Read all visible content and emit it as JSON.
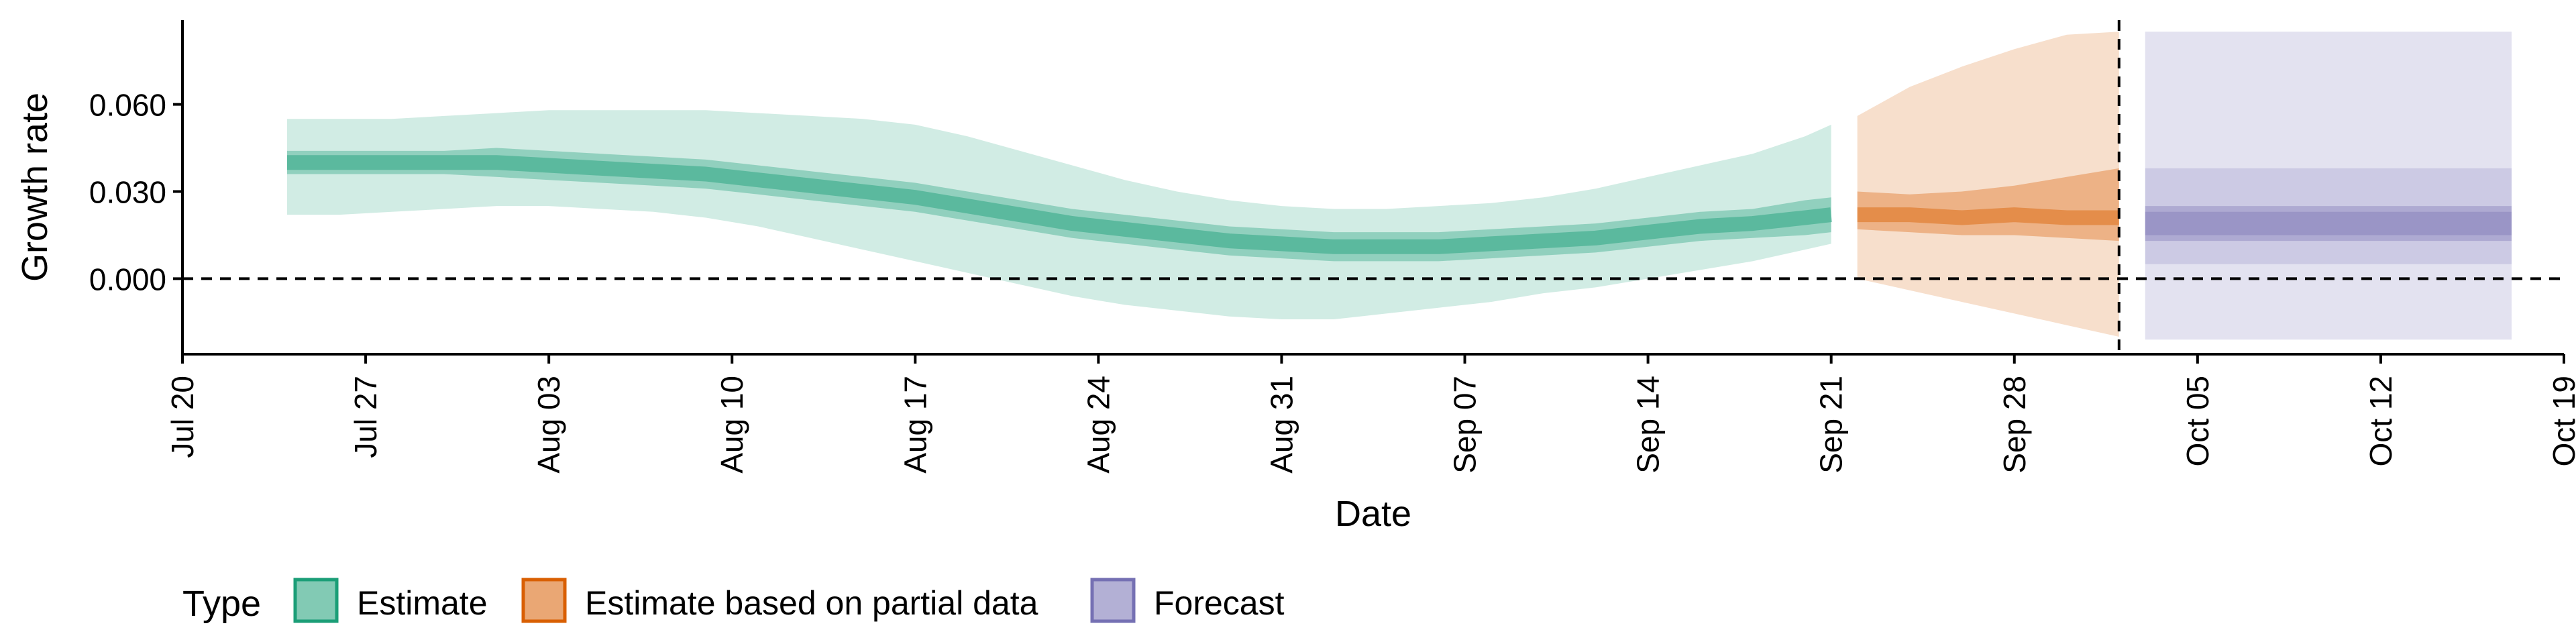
{
  "chart_data": {
    "type": "area",
    "xlabel": "Date",
    "ylabel": "Growth rate",
    "x_unit": "date",
    "xlim": [
      "2020-07-20",
      "2020-10-19"
    ],
    "ylim": [
      -0.026,
      0.089
    ],
    "x_ticks": [
      "2020-07-20",
      "2020-07-27",
      "2020-08-03",
      "2020-08-10",
      "2020-08-17",
      "2020-08-24",
      "2020-08-31",
      "2020-09-07",
      "2020-09-14",
      "2020-09-21",
      "2020-09-28",
      "2020-10-05",
      "2020-10-12",
      "2020-10-19"
    ],
    "x_tick_labels": [
      "Jul 20",
      "Jul 27",
      "Aug 03",
      "Aug 10",
      "Aug 17",
      "Aug 24",
      "Aug 31",
      "Sep 07",
      "Sep 14",
      "Sep 21",
      "Sep 28",
      "Oct 05",
      "Oct 12",
      "Oct 19"
    ],
    "y_ticks": [
      0.0,
      0.03,
      0.06
    ],
    "y_tick_labels": [
      "0.000",
      "0.030",
      "0.060"
    ],
    "reference_lines": {
      "horizontal_y": 0.0,
      "vertical_x": "2020-10-02"
    },
    "grid": false,
    "legend": {
      "title": "Type",
      "position": "bottom",
      "items": [
        {
          "label": "Estimate",
          "color": "#1b9e77"
        },
        {
          "label": "Estimate based on partial data",
          "color": "#d95f02"
        },
        {
          "label": "Forecast",
          "color": "#7570b3"
        }
      ]
    },
    "series": [
      {
        "name": "Estimate",
        "color": "#1b9e77",
        "x": [
          "2020-07-24",
          "2020-07-26",
          "2020-07-28",
          "2020-07-30",
          "2020-08-01",
          "2020-08-03",
          "2020-08-05",
          "2020-08-07",
          "2020-08-09",
          "2020-08-11",
          "2020-08-13",
          "2020-08-15",
          "2020-08-17",
          "2020-08-19",
          "2020-08-21",
          "2020-08-23",
          "2020-08-25",
          "2020-08-27",
          "2020-08-29",
          "2020-08-31",
          "2020-09-02",
          "2020-09-04",
          "2020-09-06",
          "2020-09-08",
          "2020-09-10",
          "2020-09-12",
          "2020-09-14",
          "2020-09-16",
          "2020-09-18",
          "2020-09-20",
          "2020-09-21"
        ],
        "median": [
          0.04,
          0.04,
          0.04,
          0.04,
          0.04,
          0.039,
          0.038,
          0.037,
          0.036,
          0.034,
          0.032,
          0.03,
          0.028,
          0.025,
          0.022,
          0.019,
          0.017,
          0.015,
          0.013,
          0.012,
          0.011,
          0.011,
          0.011,
          0.012,
          0.013,
          0.014,
          0.016,
          0.018,
          0.019,
          0.021,
          0.022
        ],
        "lower50": [
          0.036,
          0.036,
          0.036,
          0.036,
          0.035,
          0.034,
          0.033,
          0.032,
          0.031,
          0.029,
          0.027,
          0.025,
          0.023,
          0.02,
          0.017,
          0.014,
          0.012,
          0.01,
          0.008,
          0.007,
          0.006,
          0.006,
          0.006,
          0.007,
          0.008,
          0.009,
          0.011,
          0.013,
          0.014,
          0.015,
          0.016
        ],
        "upper50": [
          0.044,
          0.044,
          0.044,
          0.044,
          0.045,
          0.044,
          0.043,
          0.042,
          0.041,
          0.039,
          0.037,
          0.035,
          0.033,
          0.03,
          0.027,
          0.024,
          0.022,
          0.02,
          0.018,
          0.017,
          0.016,
          0.016,
          0.016,
          0.017,
          0.018,
          0.019,
          0.021,
          0.023,
          0.024,
          0.027,
          0.028
        ],
        "lower90": [
          0.022,
          0.022,
          0.023,
          0.024,
          0.025,
          0.025,
          0.024,
          0.023,
          0.021,
          0.018,
          0.014,
          0.01,
          0.006,
          0.002,
          -0.002,
          -0.006,
          -0.009,
          -0.011,
          -0.013,
          -0.014,
          -0.014,
          -0.012,
          -0.01,
          -0.008,
          -0.005,
          -0.003,
          0.0,
          0.003,
          0.006,
          0.01,
          0.012
        ],
        "upper90": [
          0.055,
          0.055,
          0.055,
          0.056,
          0.057,
          0.058,
          0.058,
          0.058,
          0.058,
          0.057,
          0.056,
          0.055,
          0.053,
          0.049,
          0.044,
          0.039,
          0.034,
          0.03,
          0.027,
          0.025,
          0.024,
          0.024,
          0.025,
          0.026,
          0.028,
          0.031,
          0.035,
          0.039,
          0.043,
          0.049,
          0.053
        ]
      },
      {
        "name": "Estimate based on partial data",
        "color": "#d95f02",
        "x": [
          "2020-09-22",
          "2020-09-24",
          "2020-09-26",
          "2020-09-28",
          "2020-09-30",
          "2020-10-02"
        ],
        "median": [
          0.022,
          0.022,
          0.021,
          0.022,
          0.021,
          0.021
        ],
        "lower50": [
          0.017,
          0.016,
          0.015,
          0.015,
          0.014,
          0.013
        ],
        "upper50": [
          0.03,
          0.029,
          0.03,
          0.032,
          0.035,
          0.038
        ],
        "lower90": [
          0.0,
          -0.004,
          -0.008,
          -0.012,
          -0.016,
          -0.02
        ],
        "upper90": [
          0.056,
          0.066,
          0.073,
          0.079,
          0.084,
          0.085
        ]
      },
      {
        "name": "Forecast",
        "color": "#7570b3",
        "x": [
          "2020-10-03",
          "2020-10-17"
        ],
        "median": [
          0.019,
          0.019
        ],
        "lower50": [
          0.013,
          0.013
        ],
        "upper50": [
          0.025,
          0.025
        ],
        "lower90": [
          0.005,
          0.005
        ],
        "upper90": [
          0.038,
          0.038
        ],
        "lower_outer": [
          -0.021,
          -0.021
        ],
        "upper_outer": [
          0.085,
          0.085
        ]
      }
    ]
  }
}
